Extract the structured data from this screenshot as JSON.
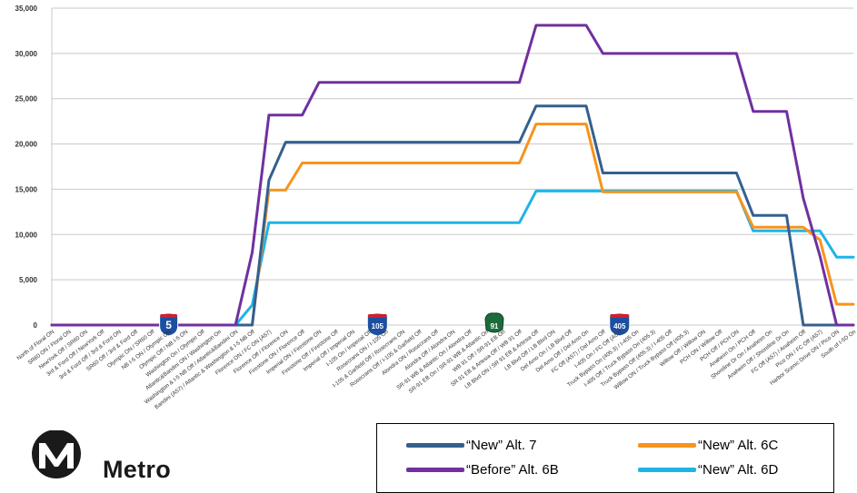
{
  "chart_data": {
    "type": "line",
    "title": "",
    "xlabel": "",
    "ylabel": "",
    "ylim": [
      0,
      35000
    ],
    "yticks": [
      0,
      5000,
      10000,
      15000,
      20000,
      25000,
      30000,
      35000
    ],
    "ytick_labels": [
      "0",
      "5,000",
      "10,000",
      "15,000",
      "20,000",
      "25,000",
      "30,000",
      "35,000"
    ],
    "grid": true,
    "legend_position": "bottom-right",
    "categories": [
      "North of Floral ON",
      "SR60 ON / Floral ON",
      "NewYork Off / SR60 ON",
      "3rd & Ford Off / NewYork Off",
      "3rd & Ford Off / 3rd & Ford ON",
      "SR60 Off / 3rd & Ford Off",
      "Olympic ON / SR60 Off",
      "NB I-5 ON / Olympic ON",
      "Olympic Off / NB I-5 ON",
      "Washington On / Olympic Off",
      "Atlantic&Bandini ON / Washington On",
      "Washington & I-5 NB Off / Atlantic&Bandini ON",
      "Bandini (A57) / Atlantic & Washington & I-5 NB Off",
      "Florence ON / FC ON (A57)",
      "Florence Off / Florence ON",
      "Firestone ON / Florence Off",
      "Imperial ON / Firestone ON",
      "Firestone Off / Firestone Off",
      "Imperial Off / Imperial ON",
      "I-105 On / Imperial Off",
      "Rosecrans ON / I-105 On",
      "I-105 & Garfield Off / Rosecrans ON",
      "Rosecrans Off / I-105 & Garfield Off",
      "Alondra ON / Rosecrans Off",
      "Alondra Off / Alondra ON",
      "SR-91 WB & Atlantic On / Alondra Off",
      "SR-91 EB On / SR-91 WB & Atlantic On",
      "WB 91 Off / SR-91 EB On",
      "SR 91 EB & Artesia Off / WB 91 Off",
      "LB Blvd ON / SR 91 EB & Artesia Off",
      "LB Blvd Off / LB Blvd ON",
      "Del Amo On / LB Blvd Off",
      "Del Amo Off / Del Amo On",
      "FC Off (A57) / Del Amo Off",
      "I-405 On / FC Off (A57)",
      "Truck Bypass On (405.3) / I-405 On",
      "I-405 Off / Truck Bypass On (405.3)",
      "Truck Bypass Off (405.3) / I-405 Off",
      "Willow ON / Truck Bypass Off (405.3)",
      "Willow Off / Willow ON",
      "PCH ON / Willow Off",
      "PCH Off / PCH ON",
      "Anaheim On / PCH Off",
      "Shoreline Dr On / Anaheim On",
      "Anaheim Off / Shoreline Dr On",
      "FC Off (A57) / Anaheim Off",
      "Pico ON / FC Off (A57)",
      "Harbor Scenic Drive ON / Pico ON",
      "South of I-5D On"
    ],
    "series": [
      {
        "name": "“New”  Alt. 7",
        "color": "#34608f",
        "values": [
          0,
          0,
          0,
          0,
          0,
          0,
          0,
          0,
          0,
          0,
          0,
          0,
          0,
          16000,
          20200,
          20200,
          20200,
          20200,
          20200,
          20200,
          20200,
          20200,
          20200,
          20200,
          20200,
          20200,
          20200,
          20200,
          20200,
          24200,
          24200,
          24200,
          24200,
          16800,
          16800,
          16800,
          16800,
          16800,
          16800,
          16800,
          16800,
          16800,
          12100,
          12100,
          12100,
          0,
          0,
          0,
          0
        ]
      },
      {
        "name": "“New”  Alt. 6C",
        "color": "#f7941d",
        "values": [
          0,
          0,
          0,
          0,
          0,
          0,
          0,
          0,
          0,
          0,
          0,
          0,
          0,
          14900,
          14900,
          17900,
          17900,
          17900,
          17900,
          17900,
          17900,
          17900,
          17900,
          17900,
          17900,
          17900,
          17900,
          17900,
          17900,
          22200,
          22200,
          22200,
          22200,
          14700,
          14700,
          14700,
          14700,
          14700,
          14700,
          14700,
          14700,
          14700,
          10800,
          10800,
          10800,
          10800,
          9400,
          2300,
          2300
        ]
      },
      {
        "name": "“Before”  Alt. 6B",
        "color": "#7030a0",
        "values": [
          0,
          0,
          0,
          0,
          0,
          0,
          0,
          0,
          0,
          0,
          0,
          0,
          8000,
          23200,
          23200,
          23200,
          26800,
          26800,
          26800,
          26800,
          26800,
          26800,
          26800,
          26800,
          26800,
          26800,
          26800,
          26800,
          26800,
          33100,
          33100,
          33100,
          33100,
          30000,
          30000,
          30000,
          30000,
          30000,
          30000,
          30000,
          30000,
          30000,
          23600,
          23600,
          23600,
          14000,
          7600,
          0,
          0
        ]
      },
      {
        "name": "“New”  Alt. 6D",
        "color": "#1fb4e6",
        "values": [
          0,
          0,
          0,
          0,
          0,
          0,
          0,
          0,
          0,
          0,
          0,
          0,
          2200,
          11300,
          11300,
          11300,
          11300,
          11300,
          11300,
          11300,
          11300,
          11300,
          11300,
          11300,
          11300,
          11300,
          11300,
          11300,
          11300,
          14800,
          14800,
          14800,
          14800,
          14800,
          14800,
          14800,
          14800,
          14800,
          14800,
          14800,
          14800,
          14800,
          10400,
          10400,
          10400,
          10400,
          10400,
          7500,
          7500
        ]
      }
    ],
    "route_shields": [
      {
        "label": "5",
        "type": "interstate",
        "at": 7
      },
      {
        "label": "105",
        "type": "interstate",
        "at": 19.5
      },
      {
        "label": "91",
        "type": "state",
        "at": 26.5
      },
      {
        "label": "405",
        "type": "interstate",
        "at": 34
      }
    ]
  },
  "legend": {
    "items": [
      {
        "label": "“New”  Alt. 7",
        "color": "#34608f"
      },
      {
        "label": "“New”  Alt. 6C",
        "color": "#f7941d"
      },
      {
        "label": "“Before”  Alt. 6B",
        "color": "#7030a0"
      },
      {
        "label": "“New”  Alt. 6D",
        "color": "#1fb4e6"
      }
    ]
  },
  "logo": {
    "text": "Metro",
    "mark": "M",
    "icon": "metro-logo-icon"
  }
}
